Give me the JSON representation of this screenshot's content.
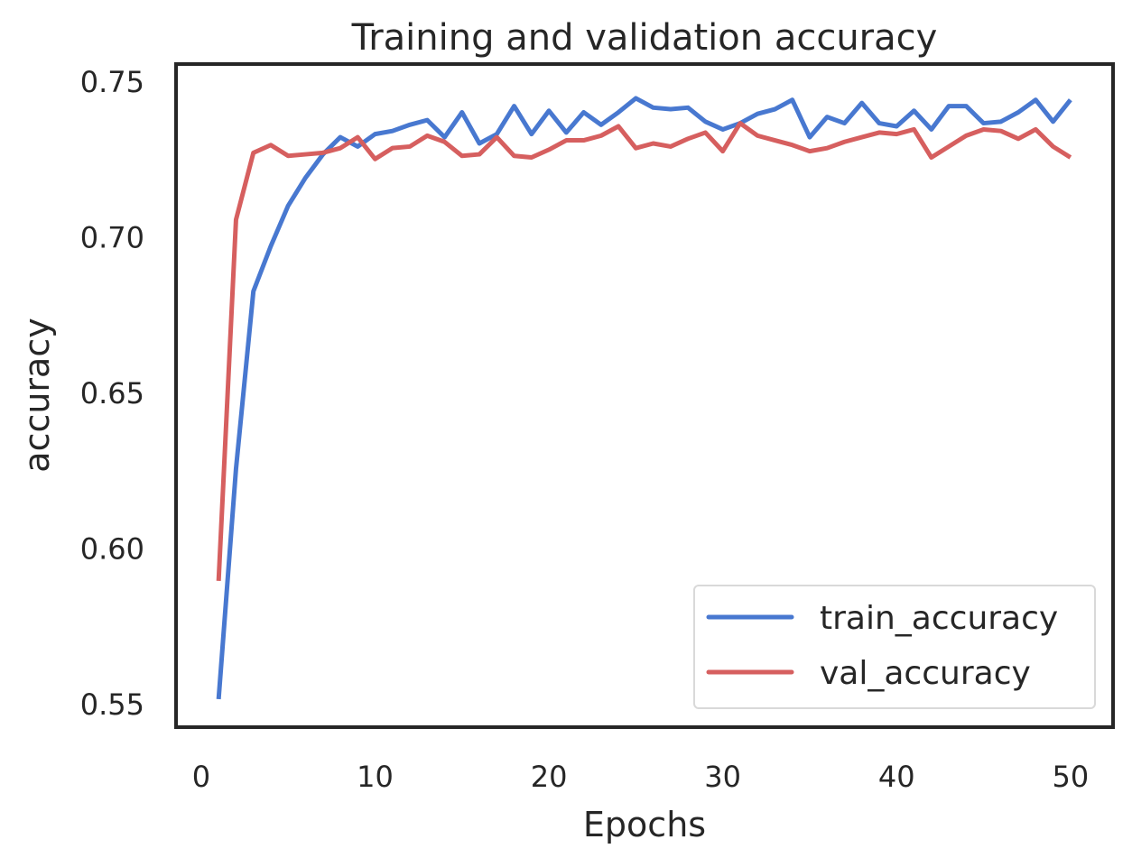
{
  "chart_data": {
    "type": "line",
    "title": "Training and validation accuracy",
    "xlabel": "Epochs",
    "ylabel": "accuracy",
    "xlim": [
      -1.45,
      52.45
    ],
    "ylim": [
      0.5425,
      0.7555
    ],
    "xticks": [
      "0",
      "10",
      "20",
      "30",
      "40",
      "50"
    ],
    "xtick_values": [
      0,
      10,
      20,
      30,
      40,
      50
    ],
    "yticks": [
      "0.55",
      "0.60",
      "0.65",
      "0.70",
      "0.75"
    ],
    "ytick_values": [
      0.55,
      0.6,
      0.65,
      0.7,
      0.75
    ],
    "grid": false,
    "legend_position": "lower-right",
    "x": [
      1,
      2,
      3,
      4,
      5,
      6,
      7,
      8,
      9,
      10,
      11,
      12,
      13,
      14,
      15,
      16,
      17,
      18,
      19,
      20,
      21,
      22,
      23,
      24,
      25,
      26,
      27,
      28,
      29,
      30,
      31,
      32,
      33,
      34,
      35,
      36,
      37,
      38,
      39,
      40,
      41,
      42,
      43,
      44,
      45,
      46,
      47,
      48,
      49,
      50
    ],
    "series": [
      {
        "name": "train_accuracy",
        "color": "#4878d0",
        "values": [
          0.5515,
          0.6255,
          0.6825,
          0.697,
          0.71,
          0.719,
          0.7265,
          0.732,
          0.729,
          0.733,
          0.734,
          0.736,
          0.7375,
          0.732,
          0.74,
          0.73,
          0.733,
          0.742,
          0.733,
          0.7405,
          0.7335,
          0.74,
          0.736,
          0.74,
          0.7445,
          0.7415,
          0.741,
          0.7415,
          0.737,
          0.7345,
          0.7365,
          0.7395,
          0.741,
          0.744,
          0.732,
          0.7385,
          0.7365,
          0.743,
          0.7365,
          0.7355,
          0.7405,
          0.7345,
          0.742,
          0.742,
          0.7365,
          0.737,
          0.74,
          0.744,
          0.737,
          0.744
        ]
      },
      {
        "name": "val_accuracy",
        "color": "#d65f5f",
        "values": [
          0.5895,
          0.7055,
          0.727,
          0.7295,
          0.726,
          0.7265,
          0.727,
          0.7285,
          0.732,
          0.725,
          0.7285,
          0.729,
          0.7325,
          0.7305,
          0.726,
          0.7265,
          0.732,
          0.726,
          0.7255,
          0.728,
          0.731,
          0.731,
          0.7325,
          0.7355,
          0.7285,
          0.73,
          0.729,
          0.7315,
          0.7335,
          0.7275,
          0.7365,
          0.7325,
          0.731,
          0.7295,
          0.7275,
          0.7285,
          0.7305,
          0.732,
          0.7335,
          0.733,
          0.7345,
          0.7255,
          0.729,
          0.7325,
          0.7345,
          0.734,
          0.7315,
          0.7345,
          0.729,
          0.7255
        ]
      }
    ]
  }
}
